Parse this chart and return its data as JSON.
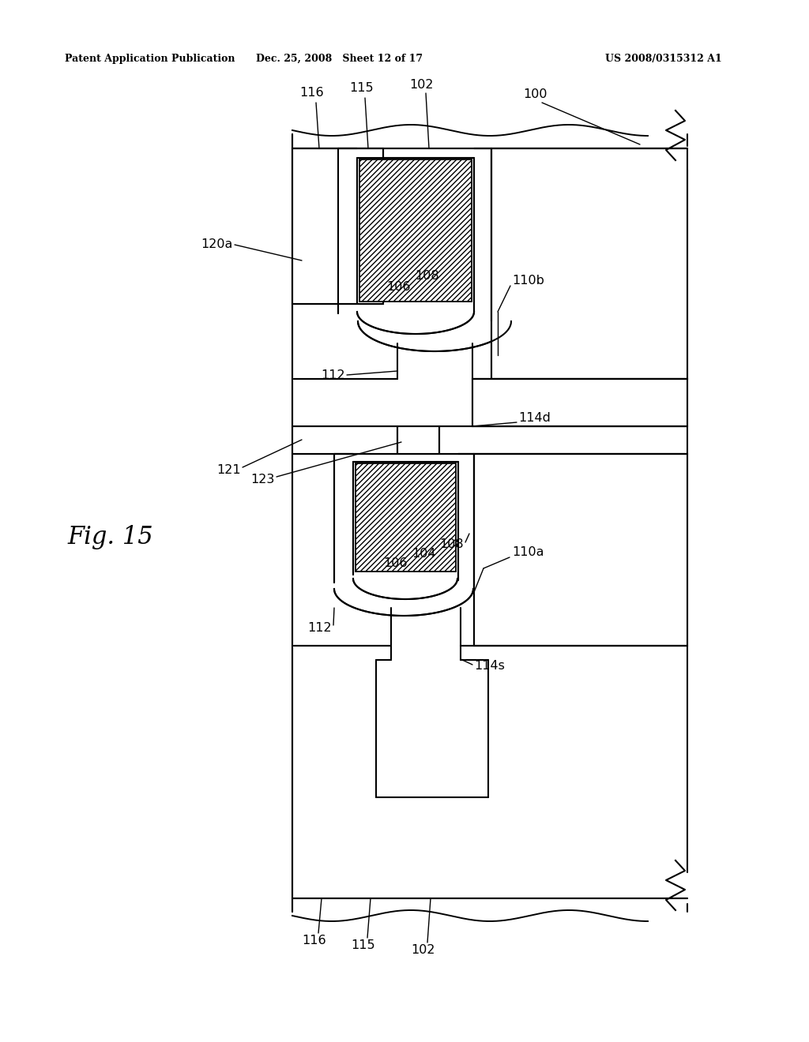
{
  "bg_color": "#ffffff",
  "line_color": "#000000",
  "header_left": "Patent Application Publication",
  "header_mid": "Dec. 25, 2008   Sheet 12 of 17",
  "header_right": "US 2008/0315312 A1",
  "fig_label": "Fig. 15",
  "lw": 1.5
}
